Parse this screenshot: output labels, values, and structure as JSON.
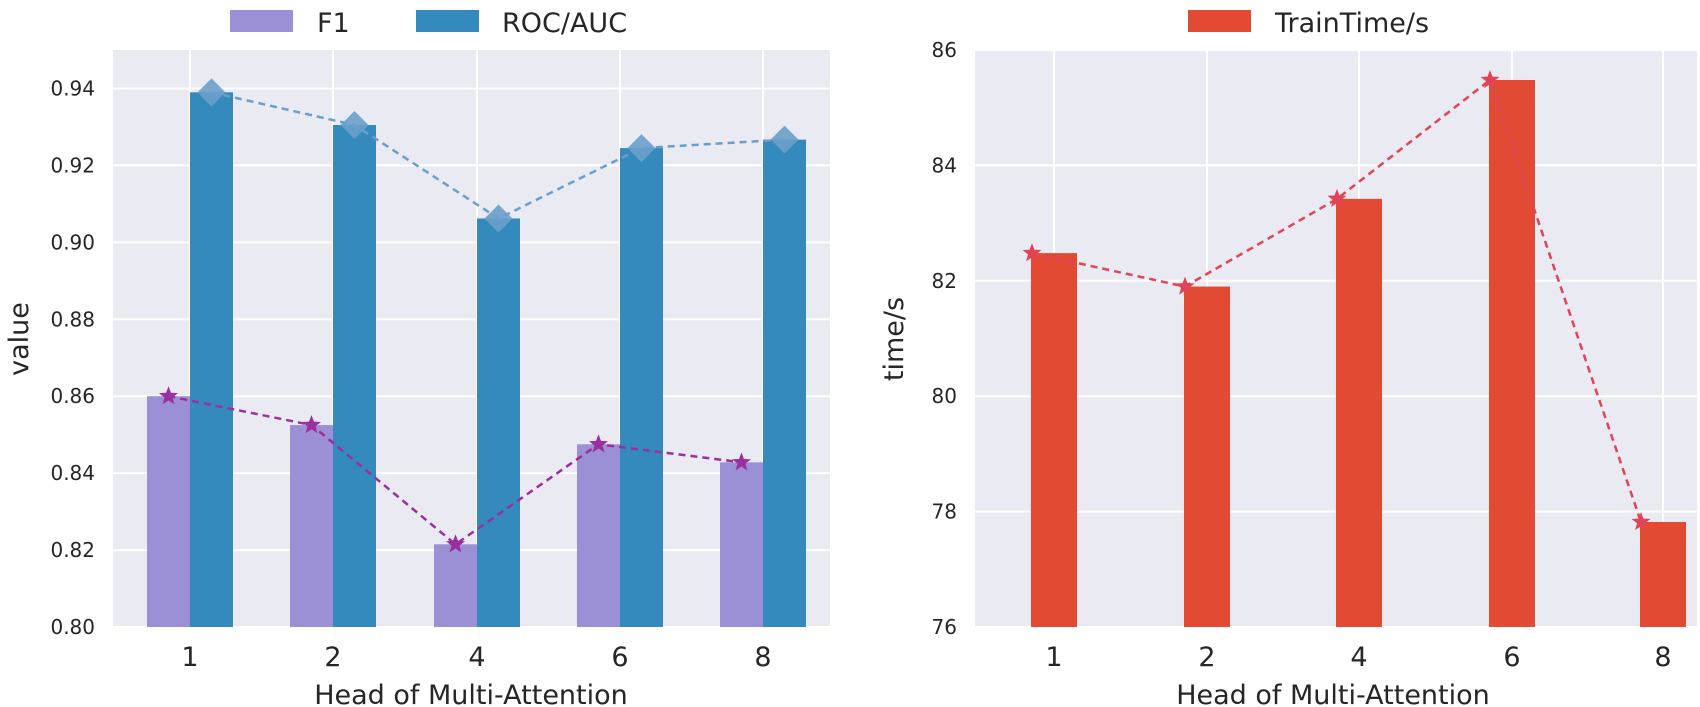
{
  "chart_data": [
    {
      "type": "bar",
      "xlabel": "Head of Multi-Attention",
      "ylabel": "value",
      "categories": [
        "1",
        "2",
        "4",
        "6",
        "8"
      ],
      "ylim": [
        0.8,
        0.95
      ],
      "yticks": [
        "0.80",
        "0.82",
        "0.84",
        "0.86",
        "0.88",
        "0.90",
        "0.92",
        "0.94"
      ],
      "ytick_values": [
        0.8,
        0.82,
        0.84,
        0.86,
        0.88,
        0.9,
        0.92,
        0.94
      ],
      "grid": true,
      "legend_position": "top-center",
      "series": [
        {
          "name": "F1",
          "values": [
            0.86,
            0.8525,
            0.8215,
            0.8475,
            0.8428
          ],
          "color": "#9b8fd5",
          "line_color": "#9a2f9f",
          "marker": "star"
        },
        {
          "name": "ROC/AUC",
          "values": [
            0.939,
            0.9305,
            0.9062,
            0.9245,
            0.9267
          ],
          "color": "#348abd",
          "line_color": "#6a9fca",
          "marker": "diamond"
        }
      ]
    },
    {
      "type": "bar",
      "xlabel": "Head of Multi-Attention",
      "ylabel": "time/s",
      "categories": [
        "1",
        "2",
        "4",
        "6",
        "8"
      ],
      "ylim": [
        76,
        86
      ],
      "yticks": [
        "76",
        "78",
        "80",
        "82",
        "84",
        "86"
      ],
      "ytick_values": [
        76,
        78,
        80,
        82,
        84,
        86
      ],
      "grid": true,
      "legend_position": "top-center",
      "series": [
        {
          "name": "TrainTime/s",
          "values": [
            82.48,
            81.9,
            83.42,
            85.48,
            77.82
          ],
          "color": "#e24a33",
          "line_color": "#e04456",
          "marker": "star"
        }
      ]
    }
  ]
}
